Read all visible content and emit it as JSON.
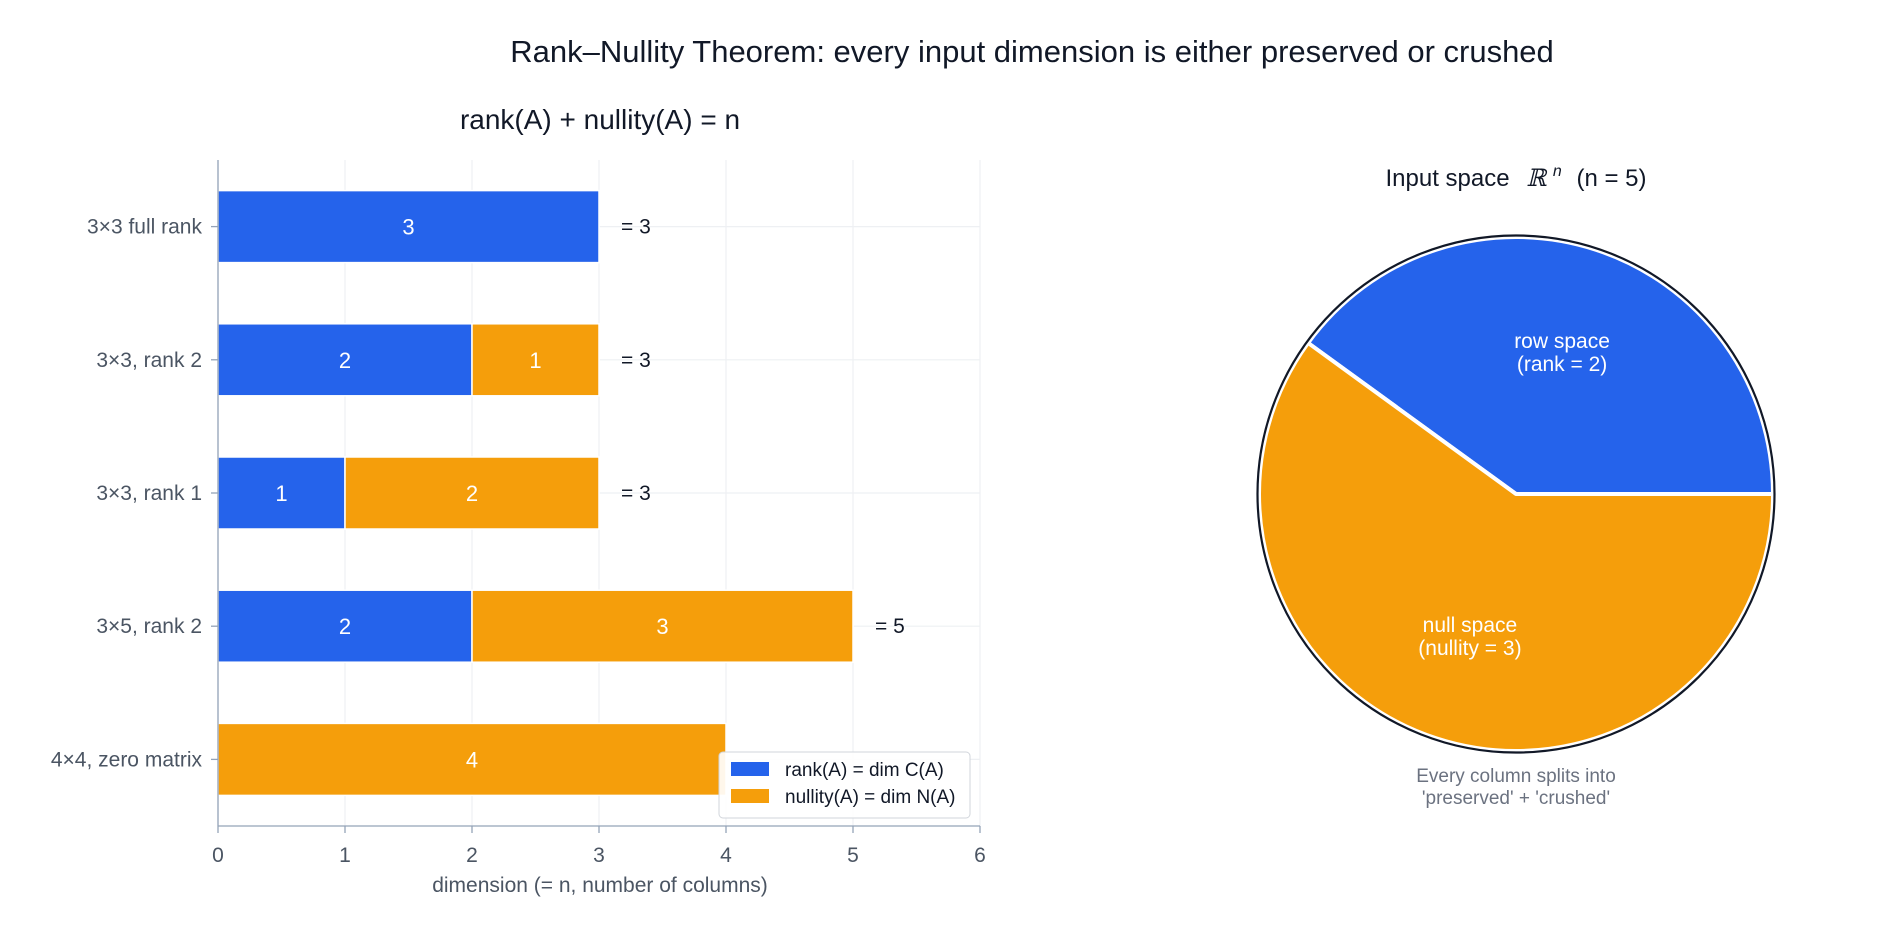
{
  "figure": {
    "title": "Rank–Nullity Theorem: every input dimension is either preserved or crushed"
  },
  "chart_data": [
    {
      "type": "bar",
      "orientation": "horizontal",
      "stacked": true,
      "title": "rank(A) + nullity(A) = n",
      "xlabel": "dimension (= n, number of columns)",
      "ylabel": "",
      "xlim": [
        0,
        6
      ],
      "xticks": [
        "0",
        "1",
        "2",
        "3",
        "4",
        "5",
        "6"
      ],
      "grid": true,
      "legend_position": "lower-right",
      "categories": [
        "3×3 full rank",
        "3×3, rank 2",
        "3×3, rank 1",
        "3×5, rank 2",
        "4×4, zero matrix"
      ],
      "series": [
        {
          "name": "rank(A) = dim C(A)",
          "color": "#2563eb",
          "values": [
            3,
            2,
            1,
            2,
            0
          ]
        },
        {
          "name": "nullity(A) = dim N(A)",
          "color": "#f59e0b",
          "values": [
            0,
            1,
            2,
            3,
            4
          ]
        }
      ],
      "totals": [
        "= 3",
        "= 3",
        "= 3",
        "= 5",
        ""
      ]
    },
    {
      "type": "pie",
      "title": "Input space",
      "title_symbol": "ℝ",
      "title_superscript": "n",
      "title_suffix": "(n = 5)",
      "slices": [
        {
          "label_line1": "row space",
          "label_line2": "(rank = 2)",
          "value": 2,
          "color": "#2563eb"
        },
        {
          "label_line1": "null space",
          "label_line2": "(nullity = 3)",
          "value": 3,
          "color": "#f59e0b"
        }
      ],
      "caption_line1": "Every column splits into",
      "caption_line2": "'preserved' + 'crushed'"
    }
  ]
}
